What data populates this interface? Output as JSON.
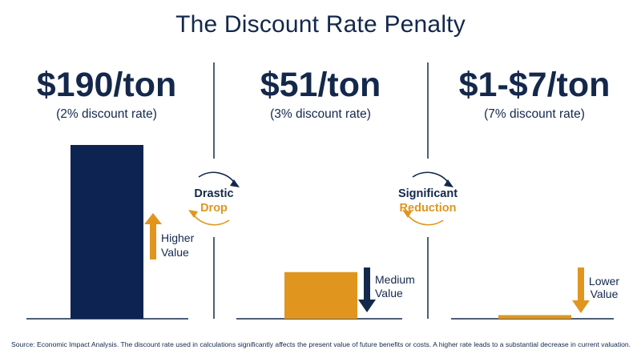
{
  "title": "The Discount Rate Penalty",
  "source": "Source: Economic Impact Analysis. The discount rate used in calculations significantly affects the present value of future benefits or costs. A higher rate leads to a substantial decrease in current valuation.",
  "colors": {
    "navy": "#14284b",
    "orange": "#e0961e",
    "bar_navy": "#0d2452",
    "text": "#14284b",
    "divider": "#14284b"
  },
  "transitions": [
    {
      "line1": "Drastic",
      "line2": "Drop",
      "icon": "cycle-arrows-icon"
    },
    {
      "line1": "Significant",
      "line2": "Reduction",
      "icon": "cycle-arrows-icon"
    }
  ],
  "chart_data": {
    "type": "bar",
    "categories": [
      "$190/ton",
      "$51/ton",
      "$1-$7/ton"
    ],
    "values": [
      190,
      51,
      4
    ],
    "unit": "$/ton",
    "value_labels": [
      "$190/ton",
      "$51/ton",
      "$1-$7/ton"
    ],
    "sublabels": [
      "(2% discount rate)",
      "(3% discount rate)",
      "(7% discount rate)"
    ],
    "discount_rates_pct": [
      2,
      3,
      7
    ],
    "bar_colors": [
      "#0d2452",
      "#e0961e",
      "#e0961e"
    ],
    "annotations": [
      {
        "text_lines": [
          "Higher",
          "Value"
        ],
        "arrow": "up",
        "arrow_color": "#e0961e",
        "icon": "arrow-up-icon"
      },
      {
        "text_lines": [
          "Medium",
          "Value"
        ],
        "arrow": "down",
        "arrow_color": "#14284b",
        "icon": "arrow-down-icon"
      },
      {
        "text_lines": [
          "Lower",
          "Value"
        ],
        "arrow": "down",
        "arrow_color": "#e0961e",
        "icon": "arrow-down-icon"
      }
    ],
    "ylim": [
      0,
      190
    ],
    "grid": false,
    "title": "The Discount Rate Penalty",
    "xlabel": "",
    "ylabel": ""
  }
}
